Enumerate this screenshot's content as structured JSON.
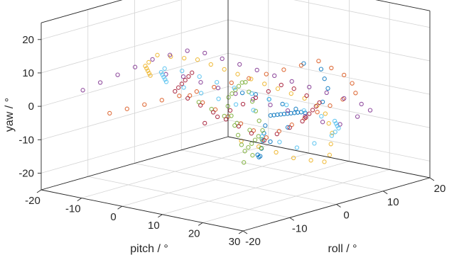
{
  "chart_data": {
    "type": "scatter",
    "projection": "3d",
    "title": "",
    "xlabel": "roll / °",
    "ylabel": "pitch / °",
    "zlabel": "yaw / °",
    "xlim": [
      -20,
      20
    ],
    "ylim": [
      -20,
      30
    ],
    "zlim": [
      -25,
      25
    ],
    "xticks": [
      "-20",
      "-10",
      "0",
      "10",
      "20"
    ],
    "yticks": [
      "-20",
      "-10",
      "0",
      "10",
      "20",
      "30"
    ],
    "zticks": [
      "-20",
      "-10",
      "0",
      "10",
      "20"
    ],
    "grid": true,
    "marker": "open circle",
    "series": [
      {
        "color": "#0072bd",
        "points": [
          [
            -2,
            9,
            4
          ],
          [
            0,
            10,
            3
          ],
          [
            2,
            11,
            1
          ],
          [
            4,
            12,
            -1
          ],
          [
            6,
            13,
            -3
          ],
          [
            8,
            12,
            -5
          ],
          [
            9,
            10,
            -6
          ],
          [
            10,
            8,
            -7
          ],
          [
            11,
            6,
            -8
          ],
          [
            12,
            4,
            -9
          ],
          [
            13,
            2,
            -10
          ],
          [
            14,
            0,
            -11
          ],
          [
            15,
            -2,
            -12
          ],
          [
            16,
            -4,
            -13
          ],
          [
            17,
            -6,
            -14
          ],
          [
            15,
            -5,
            -16
          ],
          [
            13,
            -3,
            -17
          ],
          [
            11,
            -1,
            -18
          ],
          [
            9,
            1,
            -19
          ],
          [
            7,
            3,
            -20
          ],
          [
            5,
            5,
            -19
          ],
          [
            3,
            7,
            -17
          ],
          [
            4,
            9,
            -13
          ],
          [
            6,
            11,
            -9
          ],
          [
            8,
            13,
            -5
          ],
          [
            10,
            15,
            -2
          ],
          [
            12,
            14,
            1
          ],
          [
            13,
            12,
            3
          ],
          [
            14,
            10,
            5
          ],
          [
            12,
            8,
            7
          ]
        ]
      },
      {
        "color": "#d95319",
        "points": [
          [
            -14,
            -10,
            -2
          ],
          [
            -12,
            -8,
            -1
          ],
          [
            -10,
            -6,
            0
          ],
          [
            -8,
            -4,
            1
          ],
          [
            -6,
            -2,
            2
          ],
          [
            -4,
            0,
            3
          ],
          [
            -2,
            2,
            4
          ],
          [
            0,
            4,
            5
          ],
          [
            2,
            6,
            6
          ],
          [
            4,
            8,
            7
          ],
          [
            6,
            10,
            8
          ],
          [
            8,
            12,
            9
          ],
          [
            10,
            14,
            10
          ],
          [
            11,
            16,
            8
          ],
          [
            12,
            18,
            6
          ],
          [
            12,
            20,
            4
          ],
          [
            11,
            22,
            2
          ],
          [
            10,
            20,
            0
          ],
          [
            9,
            18,
            -2
          ],
          [
            8,
            16,
            -4
          ],
          [
            7,
            14,
            -6
          ],
          [
            6,
            12,
            -8
          ],
          [
            5,
            10,
            -10
          ],
          [
            4,
            8,
            -12
          ],
          [
            3,
            6,
            -10
          ],
          [
            2,
            4,
            -8
          ],
          [
            1,
            2,
            -6
          ],
          [
            0,
            0,
            -4
          ],
          [
            -1,
            -2,
            -2
          ],
          [
            -2,
            -4,
            0
          ]
        ]
      },
      {
        "color": "#edb120",
        "points": [
          [
            -10,
            18,
            -5
          ],
          [
            -8,
            20,
            -7
          ],
          [
            -6,
            22,
            -9
          ],
          [
            -4,
            24,
            -11
          ],
          [
            -2,
            26,
            -12
          ],
          [
            0,
            27,
            -13
          ],
          [
            2,
            26,
            -12
          ],
          [
            4,
            24,
            -10
          ],
          [
            6,
            22,
            -8
          ],
          [
            7,
            20,
            -6
          ],
          [
            8,
            18,
            -4
          ],
          [
            8,
            16,
            -2
          ],
          [
            7,
            14,
            0
          ],
          [
            5,
            13,
            2
          ],
          [
            3,
            12,
            4
          ],
          [
            1,
            11,
            6
          ],
          [
            -1,
            10,
            8
          ],
          [
            -3,
            9,
            10
          ],
          [
            -5,
            8,
            12
          ],
          [
            -7,
            7,
            14
          ],
          [
            -9,
            6,
            16
          ],
          [
            -11,
            5,
            17
          ],
          [
            -13,
            4,
            18
          ],
          [
            -15,
            3,
            19
          ],
          [
            -16,
            2,
            17
          ],
          [
            -15,
            0,
            15
          ],
          [
            -13,
            -2,
            13
          ],
          [
            -11,
            -4,
            11
          ],
          [
            -9,
            -6,
            9
          ],
          [
            -7,
            -8,
            7
          ]
        ]
      },
      {
        "color": "#7e2f8e",
        "points": [
          [
            -18,
            -12,
            6
          ],
          [
            -16,
            -10,
            8
          ],
          [
            -14,
            -8,
            10
          ],
          [
            -12,
            -6,
            12
          ],
          [
            -10,
            -4,
            14
          ],
          [
            -8,
            -2,
            15
          ],
          [
            -6,
            0,
            16
          ],
          [
            -4,
            2,
            15
          ],
          [
            -2,
            4,
            13
          ],
          [
            0,
            6,
            11
          ],
          [
            2,
            8,
            9
          ],
          [
            4,
            10,
            7
          ],
          [
            6,
            12,
            5
          ],
          [
            8,
            14,
            3
          ],
          [
            10,
            16,
            1
          ],
          [
            12,
            18,
            -1
          ],
          [
            14,
            20,
            -3
          ],
          [
            15,
            21,
            -5
          ],
          [
            14,
            19,
            -7
          ],
          [
            12,
            17,
            -9
          ],
          [
            10,
            15,
            -8
          ],
          [
            8,
            13,
            -6
          ],
          [
            6,
            11,
            -4
          ],
          [
            4,
            9,
            -2
          ],
          [
            2,
            7,
            0
          ],
          [
            0,
            5,
            2
          ],
          [
            -2,
            3,
            4
          ],
          [
            -4,
            1,
            6
          ],
          [
            -6,
            -1,
            8
          ],
          [
            -8,
            -3,
            9
          ]
        ]
      },
      {
        "color": "#77ac30",
        "points": [
          [
            -6,
            14,
            -14
          ],
          [
            -5,
            15,
            -12
          ],
          [
            -4,
            16,
            -10
          ],
          [
            -3,
            15,
            -8
          ],
          [
            -2,
            14,
            -6
          ],
          [
            -1,
            12,
            -4
          ],
          [
            0,
            10,
            -2
          ],
          [
            1,
            8,
            0
          ],
          [
            2,
            6,
            2
          ],
          [
            3,
            4,
            4
          ],
          [
            4,
            2,
            3
          ],
          [
            5,
            0,
            1
          ],
          [
            6,
            -2,
            -1
          ],
          [
            7,
            -4,
            -3
          ],
          [
            8,
            -6,
            -5
          ],
          [
            7,
            -5,
            -7
          ],
          [
            6,
            -3,
            -9
          ],
          [
            5,
            -1,
            -11
          ],
          [
            4,
            1,
            -13
          ],
          [
            3,
            3,
            -15
          ],
          [
            2,
            5,
            -16
          ],
          [
            1,
            7,
            -14
          ],
          [
            0,
            9,
            -12
          ],
          [
            -1,
            11,
            -10
          ],
          [
            -2,
            13,
            -8
          ],
          [
            -3,
            12,
            -6
          ],
          [
            -4,
            10,
            -4
          ],
          [
            -5,
            8,
            -2
          ],
          [
            -6,
            6,
            0
          ],
          [
            -7,
            4,
            2
          ]
        ]
      },
      {
        "color": "#4dbeee",
        "points": [
          [
            10,
            0,
            -16
          ],
          [
            12,
            2,
            -18
          ],
          [
            14,
            4,
            -20
          ],
          [
            16,
            6,
            -19
          ],
          [
            18,
            8,
            -17
          ],
          [
            17,
            10,
            -15
          ],
          [
            16,
            12,
            -13
          ],
          [
            14,
            14,
            -11
          ],
          [
            12,
            16,
            -9
          ],
          [
            10,
            18,
            -7
          ],
          [
            8,
            17,
            -5
          ],
          [
            6,
            15,
            -3
          ],
          [
            4,
            13,
            -1
          ],
          [
            2,
            11,
            1
          ],
          [
            0,
            9,
            3
          ],
          [
            -2,
            7,
            5
          ],
          [
            -4,
            5,
            7
          ],
          [
            -6,
            3,
            9
          ],
          [
            -8,
            1,
            11
          ],
          [
            -10,
            -1,
            12
          ],
          [
            -9,
            -3,
            10
          ],
          [
            -7,
            -5,
            8
          ],
          [
            -5,
            -7,
            6
          ],
          [
            -3,
            -9,
            4
          ],
          [
            -1,
            -11,
            2
          ],
          [
            1,
            -9,
            0
          ],
          [
            3,
            -7,
            -2
          ],
          [
            5,
            -5,
            -4
          ],
          [
            7,
            -3,
            -6
          ],
          [
            9,
            -1,
            -8
          ]
        ]
      },
      {
        "color": "#a2142f",
        "points": [
          [
            -4,
            2,
            -6
          ],
          [
            -3,
            4,
            -4
          ],
          [
            -2,
            6,
            -2
          ],
          [
            -1,
            8,
            0
          ],
          [
            0,
            10,
            2
          ],
          [
            1,
            12,
            4
          ],
          [
            2,
            14,
            6
          ],
          [
            3,
            16,
            5
          ],
          [
            4,
            18,
            3
          ],
          [
            5,
            20,
            1
          ],
          [
            6,
            18,
            -1
          ],
          [
            7,
            16,
            -3
          ],
          [
            8,
            14,
            -5
          ],
          [
            9,
            12,
            -7
          ],
          [
            10,
            10,
            -9
          ],
          [
            9,
            8,
            -11
          ],
          [
            8,
            6,
            -13
          ],
          [
            7,
            4,
            -15
          ],
          [
            6,
            2,
            -13
          ],
          [
            5,
            0,
            -11
          ],
          [
            4,
            -2,
            -9
          ],
          [
            3,
            -4,
            -7
          ],
          [
            2,
            -6,
            -5
          ],
          [
            1,
            -8,
            -3
          ],
          [
            0,
            -10,
            -1
          ],
          [
            -1,
            -8,
            1
          ],
          [
            -2,
            -6,
            3
          ],
          [
            -3,
            -4,
            5
          ],
          [
            -4,
            -2,
            7
          ],
          [
            -5,
            0,
            9
          ]
        ]
      }
    ]
  }
}
